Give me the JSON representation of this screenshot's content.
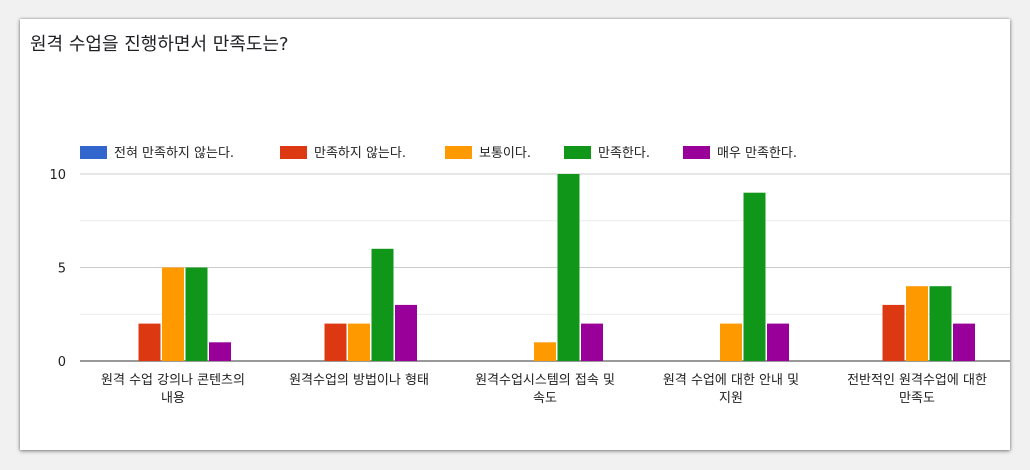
{
  "chart_data": {
    "type": "bar",
    "title": "원격 수업을 진행하면서 만족도는?",
    "categories": [
      [
        "원격 수업 강의나 콘텐츠의",
        "내용"
      ],
      [
        "원격수업의 방법이나 형태"
      ],
      [
        "원격수업시스템의 접속 및",
        "속도"
      ],
      [
        "원격 수업에 대한 안내 및",
        "지원"
      ],
      [
        "전반적인 원격수업에 대한",
        "만족도"
      ]
    ],
    "series": [
      {
        "name": "전혀 만족하지 않는다.",
        "color": "#3366cc",
        "values": [
          0,
          0,
          0,
          0,
          0
        ]
      },
      {
        "name": "만족하지 않는다.",
        "color": "#dc3912",
        "values": [
          2,
          2,
          0,
          0,
          3
        ]
      },
      {
        "name": "보통이다.",
        "color": "#ff9900",
        "values": [
          5,
          2,
          1,
          2,
          4
        ]
      },
      {
        "name": "만족한다.",
        "color": "#109618",
        "values": [
          5,
          6,
          10,
          9,
          4
        ]
      },
      {
        "name": "매우 만족한다.",
        "color": "#990099",
        "values": [
          1,
          3,
          2,
          2,
          2
        ]
      }
    ],
    "y_ticks": [
      "0",
      "5",
      "10"
    ],
    "ylim": [
      0,
      10
    ],
    "grid": true,
    "legend_position": "top"
  }
}
